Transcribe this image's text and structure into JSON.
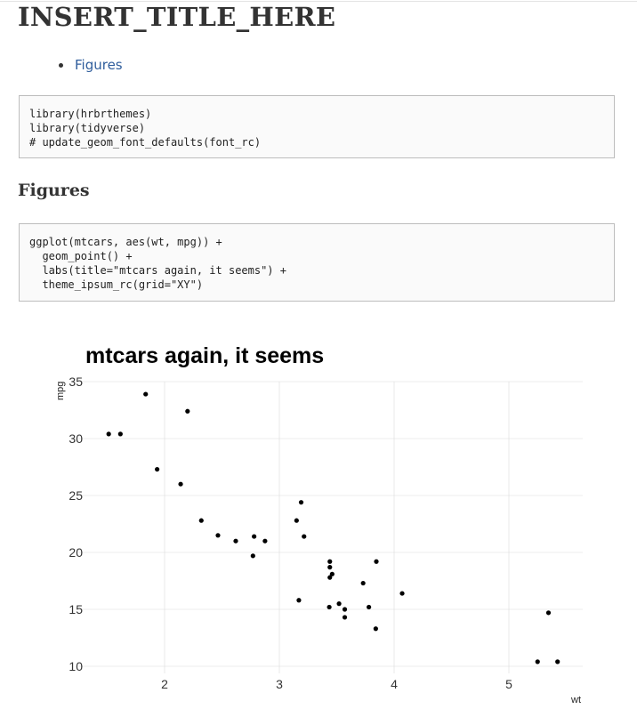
{
  "page": {
    "title": "INSERT_TITLE_HERE",
    "toc": [
      {
        "label": "Figures"
      }
    ],
    "code_blocks": [
      {
        "code": "library(hrbrthemes)\nlibrary(tidyverse)\n# update_geom_font_defaults(font_rc)"
      },
      {
        "code": "ggplot(mtcars, aes(wt, mpg)) +\n  geom_point() +\n  labs(title=\"mtcars again, it seems\") +\n  theme_ipsum_rc(grid=\"XY\")"
      }
    ],
    "section_heading": "Figures"
  },
  "chart_data": {
    "type": "scatter",
    "title": "mtcars again, it seems",
    "xlabel": "wt",
    "ylabel": "mpg",
    "xlim": [
      1.4,
      5.6
    ],
    "ylim": [
      10,
      35
    ],
    "x_ticks": [
      2,
      3,
      4,
      5
    ],
    "y_ticks": [
      10,
      15,
      20,
      25,
      30,
      35
    ],
    "grid": "XY",
    "point_color": "#000000",
    "points": [
      {
        "x": 2.62,
        "y": 21.0
      },
      {
        "x": 2.875,
        "y": 21.0
      },
      {
        "x": 2.32,
        "y": 22.8
      },
      {
        "x": 3.215,
        "y": 21.4
      },
      {
        "x": 3.44,
        "y": 18.7
      },
      {
        "x": 3.46,
        "y": 18.1
      },
      {
        "x": 3.57,
        "y": 14.3
      },
      {
        "x": 3.19,
        "y": 24.4
      },
      {
        "x": 3.15,
        "y": 22.8
      },
      {
        "x": 3.44,
        "y": 19.2
      },
      {
        "x": 3.44,
        "y": 17.8
      },
      {
        "x": 4.07,
        "y": 16.4
      },
      {
        "x": 3.73,
        "y": 17.3
      },
      {
        "x": 3.78,
        "y": 15.2
      },
      {
        "x": 5.25,
        "y": 10.4
      },
      {
        "x": 5.424,
        "y": 10.4
      },
      {
        "x": 5.345,
        "y": 14.7
      },
      {
        "x": 2.2,
        "y": 32.4
      },
      {
        "x": 1.615,
        "y": 30.4
      },
      {
        "x": 1.835,
        "y": 33.9
      },
      {
        "x": 2.465,
        "y": 21.5
      },
      {
        "x": 3.52,
        "y": 15.5
      },
      {
        "x": 3.435,
        "y": 15.2
      },
      {
        "x": 3.84,
        "y": 13.3
      },
      {
        "x": 3.845,
        "y": 19.2
      },
      {
        "x": 1.935,
        "y": 27.3
      },
      {
        "x": 2.14,
        "y": 26.0
      },
      {
        "x": 1.513,
        "y": 30.4
      },
      {
        "x": 3.17,
        "y": 15.8
      },
      {
        "x": 2.77,
        "y": 19.7
      },
      {
        "x": 3.57,
        "y": 15.0
      },
      {
        "x": 2.78,
        "y": 21.4
      }
    ]
  }
}
